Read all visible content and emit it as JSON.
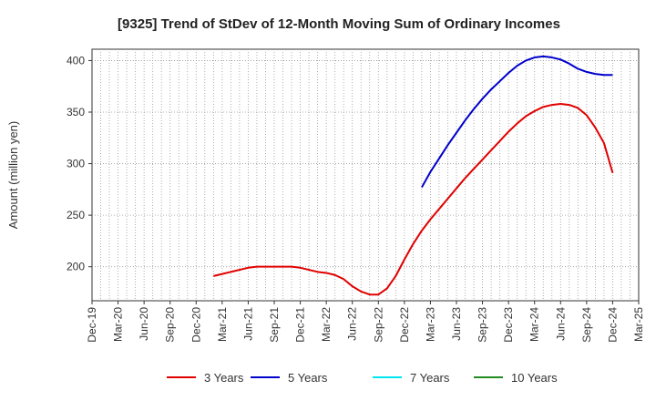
{
  "chart_data": {
    "type": "line",
    "title": "[9325]  Trend of StDev of 12-Month Moving Sum of Ordinary Incomes",
    "ylabel": "Amount (million yen)",
    "xlabel": "",
    "ylim": [
      167,
      411
    ],
    "yticks": [
      200,
      250,
      300,
      350,
      400
    ],
    "x_tick_labels": [
      "Dec-19",
      "Mar-20",
      "Jun-20",
      "Sep-20",
      "Dec-20",
      "Mar-21",
      "Jun-21",
      "Sep-21",
      "Dec-21",
      "Mar-22",
      "Jun-22",
      "Sep-22",
      "Dec-22",
      "Mar-23",
      "Jun-23",
      "Sep-23",
      "Dec-23",
      "Mar-24",
      "Jun-24",
      "Sep-24",
      "Dec-24",
      "Mar-25"
    ],
    "grid": true,
    "legend_position": "bottom",
    "series": [
      {
        "name": "3 Years",
        "color": "#e00000",
        "x": [
          "Feb-21",
          "Mar-21",
          "Apr-21",
          "May-21",
          "Jun-21",
          "Jul-21",
          "Aug-21",
          "Sep-21",
          "Oct-21",
          "Nov-21",
          "Dec-21",
          "Jan-22",
          "Feb-22",
          "Mar-22",
          "Apr-22",
          "May-22",
          "Jun-22",
          "Jul-22",
          "Aug-22",
          "Sep-22",
          "Oct-22",
          "Nov-22",
          "Dec-22",
          "Jan-23",
          "Feb-23",
          "Mar-23",
          "Apr-23",
          "May-23",
          "Jun-23",
          "Jul-23",
          "Aug-23",
          "Sep-23",
          "Oct-23",
          "Nov-23",
          "Dec-23",
          "Jan-24",
          "Feb-24",
          "Mar-24",
          "Apr-24",
          "May-24",
          "Jun-24",
          "Jul-24",
          "Aug-24",
          "Sep-24",
          "Oct-24",
          "Nov-24",
          "Dec-24"
        ],
        "values": [
          191,
          193,
          195,
          197,
          199,
          200,
          200,
          200,
          200,
          200,
          199,
          197,
          195,
          194,
          192,
          188,
          181,
          176,
          173,
          173,
          179,
          191,
          207,
          222,
          235,
          246,
          256,
          266,
          276,
          286,
          295,
          304,
          313,
          322,
          331,
          339,
          346,
          351,
          355,
          357,
          358,
          357,
          354,
          347,
          335,
          320,
          291
        ]
      },
      {
        "name": "5 Years",
        "color": "#0000cc",
        "x": [
          "Feb-23",
          "Mar-23",
          "Apr-23",
          "May-23",
          "Jun-23",
          "Jul-23",
          "Aug-23",
          "Sep-23",
          "Oct-23",
          "Nov-23",
          "Dec-23",
          "Jan-24",
          "Feb-24",
          "Mar-24",
          "Apr-24",
          "May-24",
          "Jun-24",
          "Jul-24",
          "Aug-24",
          "Sep-24",
          "Oct-24",
          "Nov-24",
          "Dec-24"
        ],
        "values": [
          277,
          292,
          305,
          318,
          330,
          342,
          353,
          363,
          372,
          380,
          388,
          395,
          400,
          403,
          404,
          403,
          401,
          397,
          392,
          389,
          387,
          386,
          386
        ]
      },
      {
        "name": "7 Years",
        "color": "#00e5ee",
        "x": [],
        "values": []
      },
      {
        "name": "10 Years",
        "color": "#228b22",
        "x": [],
        "values": []
      }
    ]
  }
}
